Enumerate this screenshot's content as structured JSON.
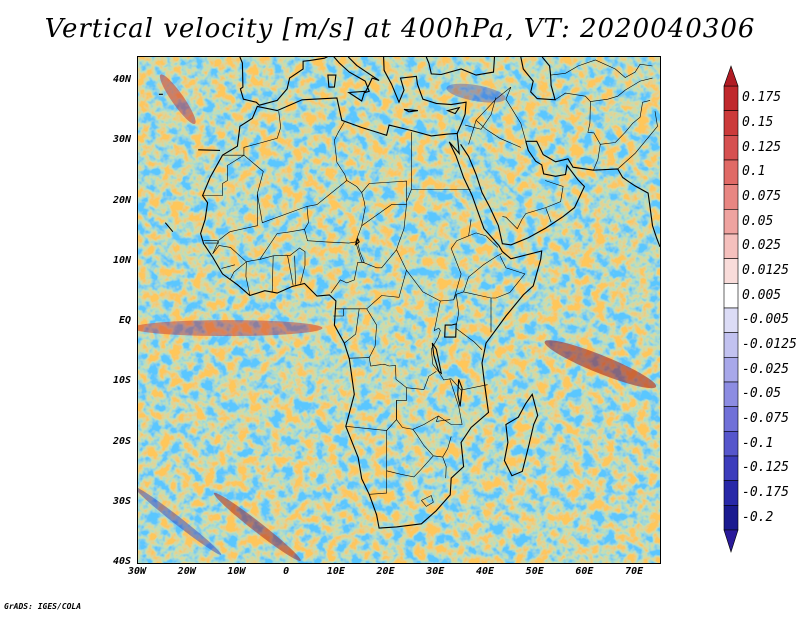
{
  "title": "Vertical velocity [m/s] at 400hPa, VT: 2020040306",
  "footer": "GrADS: IGES/COLA",
  "map": {
    "lat_labels": [
      "40N",
      "30N",
      "20N",
      "10N",
      "EQ",
      "10S",
      "20S",
      "30S",
      "40S"
    ],
    "lon_labels": [
      "30W",
      "20W",
      "10W",
      "0",
      "10E",
      "20E",
      "30E",
      "40E",
      "50E",
      "60E",
      "70E"
    ],
    "lat_range": [
      -40,
      44
    ],
    "lon_range": [
      -30,
      75
    ]
  },
  "colorbar": {
    "labels": [
      "0.175",
      "0.15",
      "0.125",
      "0.1",
      "0.075",
      "0.05",
      "0.025",
      "0.0125",
      "0.005",
      "-0.005",
      "-0.0125",
      "-0.025",
      "-0.05",
      "-0.075",
      "-0.1",
      "-0.125",
      "-0.175",
      "-0.2"
    ],
    "colors": [
      "#c0282c",
      "#cc3a3a",
      "#d65050",
      "#e06a66",
      "#e88682",
      "#efa3a0",
      "#f5c0bd",
      "#f9dcda",
      "#ffffff",
      "#dcdcf6",
      "#c2c2f0",
      "#a8a8ea",
      "#8c8ce2",
      "#7070d8",
      "#5656cc",
      "#3c3cbc",
      "#2828a8",
      "#1a1a90"
    ]
  }
}
